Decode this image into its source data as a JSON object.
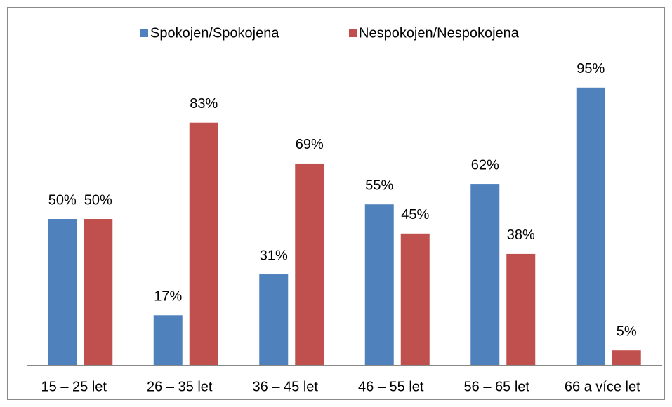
{
  "chart_data": {
    "type": "bar",
    "categories": [
      "15 – 25 let",
      "26 – 35 let",
      "36 – 45 let",
      "46 – 55 let",
      "56 – 65 let",
      "66 a více let"
    ],
    "series": [
      {
        "name": "Spokojen/Spokojena",
        "color": "#4f81bd",
        "values": [
          50,
          17,
          31,
          55,
          62,
          95
        ],
        "value_labels": [
          "50%",
          "17%",
          "31%",
          "55%",
          "62%",
          "95%"
        ]
      },
      {
        "name": "Nespokojen/Nespokojena",
        "color": "#c0504d",
        "values": [
          50,
          83,
          69,
          45,
          38,
          5
        ],
        "value_labels": [
          "50%",
          "83%",
          "69%",
          "45%",
          "38%",
          "5%"
        ]
      }
    ],
    "ylim": [
      0,
      100
    ],
    "legend": "top"
  }
}
